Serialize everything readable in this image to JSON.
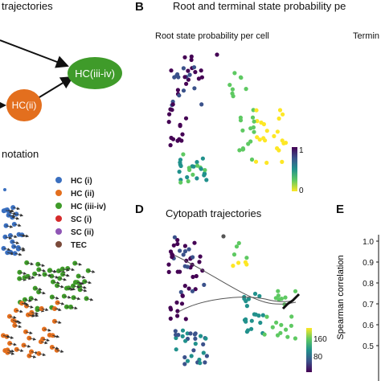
{
  "panel_a": {
    "title": "trajectories",
    "nodes": [
      {
        "label": "HC(iii-iv)",
        "color": "#3f9b2a"
      },
      {
        "label": "HC(ii)",
        "color": "#e36f1e"
      }
    ],
    "annotation_title": "notation",
    "legend": [
      {
        "label": "HC (i)",
        "color": "#3a6fbf"
      },
      {
        "label": "HC (ii)",
        "color": "#e36f1e"
      },
      {
        "label": "HC (iii-iv)",
        "color": "#3f9b2a"
      },
      {
        "label": "SC (i)",
        "color": "#d52b2b"
      },
      {
        "label": "SC (ii)",
        "color": "#8f55b5"
      },
      {
        "label": "TEC",
        "color": "#7a4a3a"
      }
    ]
  },
  "panel_b": {
    "letter": "B",
    "title": "Root and terminal state probability pe",
    "subtitle_left": "Root state probability per cell",
    "subtitle_right": "Termin",
    "colorbar": {
      "max_label": "1",
      "min_label": "0"
    }
  },
  "panel_d": {
    "letter": "D",
    "title": "Cytopath trajectories",
    "colorbar": {
      "max_label": "160",
      "min_label": "80"
    }
  },
  "panel_e": {
    "letter": "E",
    "ylabel": "Spearman correlation",
    "yticks": [
      "1.0",
      "0.9",
      "0.8",
      "0.7",
      "0.6",
      "0.5"
    ]
  },
  "colors": {
    "viridis": [
      "#440154",
      "#3b528b",
      "#21918c",
      "#5ec962",
      "#fde725"
    ]
  }
}
